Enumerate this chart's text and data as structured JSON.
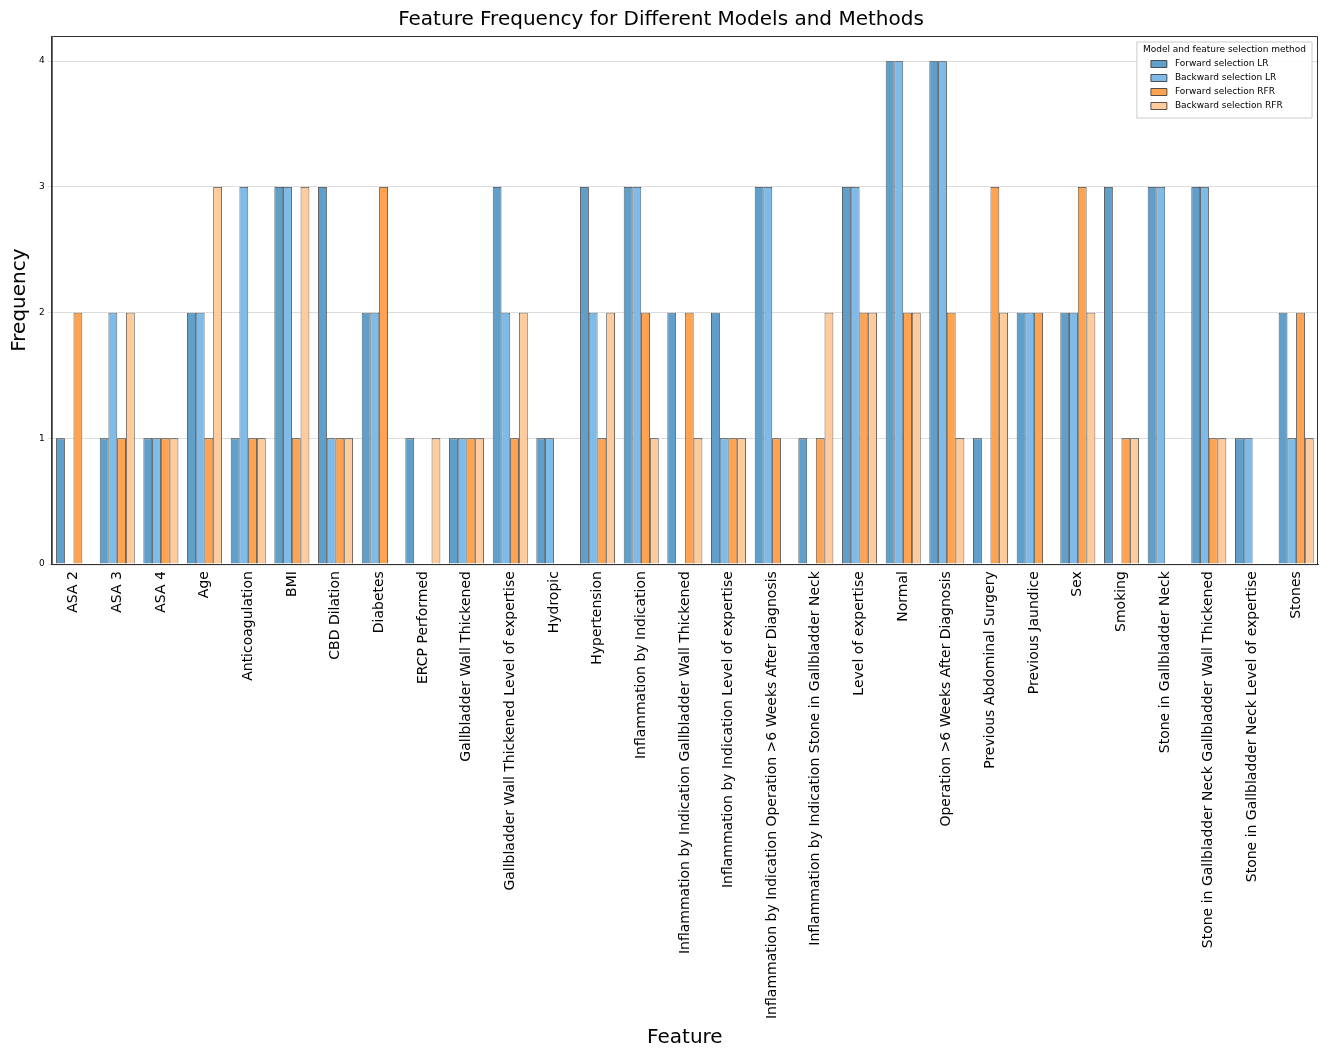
{
  "chart_data": {
    "type": "bar",
    "title": "Feature Frequency for Different Models and Methods",
    "xlabel": "Feature",
    "ylabel": "Frequency",
    "legend_title": "Model and feature selection method",
    "legend": "top right",
    "grid": "y",
    "categories": [
      "ASA 2",
      "ASA 3",
      "ASA 4",
      "Age",
      "Anticoagulation",
      "BMI",
      "CBD Dilation",
      "Diabetes",
      "ERCP Performed",
      "Gallbladder Wall Thickened",
      "Gallbladder Wall Thickened Level of expertise",
      "Hydropic",
      "Hypertension",
      "Inflammation by Indication",
      "Inflammation by Indication Gallbladder Wall Thickened",
      "Inflammation by Indication Level of expertise",
      "Inflammation by Indication Operation >6 Weeks After Diagnosis",
      "Inflammation by Indication Stone in Gallbladder Neck",
      "Level of expertise",
      "Normal",
      "Operation >6 Weeks After Diagnosis",
      "Previous Abdominal Surgery",
      "Previous Jaundice",
      "Sex",
      "Smoking",
      "Stone in Gallbladder Neck",
      "Stone in Gallbladder Neck Gallbladder Wall Thickened",
      "Stone in Gallbladder Neck Level of expertise",
      "Stones"
    ],
    "series": [
      {
        "name": "Forward selection LR",
        "color": "#609fca",
        "values": [
          1,
          1,
          1,
          2,
          1,
          3,
          3,
          2,
          1,
          1,
          3,
          1,
          3,
          3,
          2,
          2,
          3,
          1,
          3,
          4,
          4,
          1,
          2,
          2,
          3,
          3,
          3,
          1,
          2
        ]
      },
      {
        "name": "Backward selection LR",
        "color": "#7fbbe9",
        "values": [
          0,
          2,
          1,
          2,
          3,
          3,
          1,
          2,
          0,
          1,
          2,
          1,
          2,
          3,
          0,
          1,
          3,
          0,
          3,
          4,
          4,
          0,
          2,
          2,
          0,
          3,
          3,
          1,
          1
        ]
      },
      {
        "name": "Forward selection RFR",
        "color": "#fda352",
        "values": [
          2,
          1,
          1,
          1,
          1,
          1,
          1,
          3,
          0,
          1,
          1,
          0,
          1,
          2,
          2,
          1,
          1,
          1,
          2,
          2,
          2,
          3,
          2,
          3,
          1,
          0,
          1,
          0,
          2
        ]
      },
      {
        "name": "Backward selection RFR",
        "color": "#fecb9c",
        "values": [
          0,
          2,
          1,
          3,
          1,
          3,
          1,
          0,
          1,
          1,
          2,
          0,
          2,
          1,
          1,
          1,
          0,
          2,
          2,
          2,
          1,
          2,
          0,
          2,
          1,
          0,
          1,
          0,
          1
        ]
      }
    ],
    "ylim": [
      0,
      4.2
    ],
    "yticks": [
      0,
      1,
      2,
      3,
      4
    ]
  }
}
